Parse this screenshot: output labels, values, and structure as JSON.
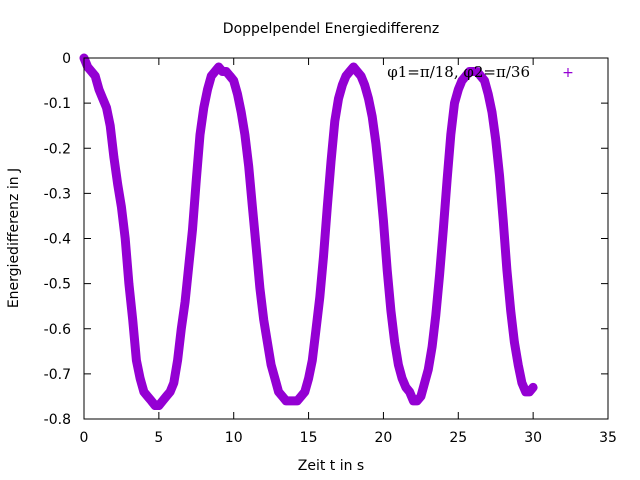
{
  "chart_data": {
    "type": "line",
    "title": "Doppelpendel Energiedifferenz",
    "xlabel": "Zeit t in s",
    "ylabel": "Energiedifferenz in J",
    "xlim": [
      0,
      35
    ],
    "ylim": [
      -0.8,
      0
    ],
    "x_ticks": [
      "0",
      "5",
      "10",
      "15",
      "20",
      "25",
      "30",
      "35"
    ],
    "y_ticks": [
      "0",
      "-0.1",
      "-0.2",
      "-0.3",
      "-0.4",
      "-0.5",
      "-0.6",
      "-0.7",
      "-0.8"
    ],
    "legend": {
      "label": "φ1=π/18, φ2=π/36",
      "marker": "+",
      "placement": "top-right"
    },
    "series": [
      {
        "name": "φ1=π/18, φ2=π/36",
        "color": "#9400d3",
        "x": [
          0,
          0.25,
          0.5,
          0.75,
          1.0,
          1.25,
          1.5,
          1.75,
          2.0,
          2.25,
          2.5,
          2.75,
          3.0,
          3.25,
          3.5,
          3.75,
          4.0,
          4.25,
          4.5,
          4.75,
          5.0,
          5.25,
          5.5,
          5.75,
          6.0,
          6.25,
          6.5,
          6.75,
          7.0,
          7.25,
          7.5,
          7.75,
          8.0,
          8.25,
          8.5,
          8.75,
          9.0,
          9.25,
          9.5,
          9.75,
          10.0,
          10.25,
          10.5,
          10.75,
          11.0,
          11.25,
          11.5,
          11.75,
          12.0,
          12.25,
          12.5,
          12.75,
          13.0,
          13.25,
          13.5,
          13.75,
          14.0,
          14.25,
          14.5,
          14.75,
          15.0,
          15.25,
          15.5,
          15.75,
          16.0,
          16.25,
          16.5,
          16.75,
          17.0,
          17.25,
          17.5,
          17.75,
          18.0,
          18.25,
          18.5,
          18.75,
          19.0,
          19.25,
          19.5,
          19.75,
          20.0,
          20.25,
          20.5,
          20.75,
          21.0,
          21.25,
          21.5,
          21.75,
          22.0,
          22.25,
          22.5,
          22.75,
          23.0,
          23.25,
          23.5,
          23.75,
          24.0,
          24.25,
          24.5,
          24.75,
          25.0,
          25.25,
          25.5,
          25.75,
          26.0,
          26.25,
          26.5,
          26.75,
          27.0,
          27.25,
          27.5,
          27.75,
          28.0,
          28.25,
          28.5,
          28.75,
          29.0,
          29.25,
          29.5,
          29.75,
          30.0
        ],
        "y": [
          0.0,
          -0.02,
          -0.03,
          -0.04,
          -0.07,
          -0.09,
          -0.11,
          -0.15,
          -0.22,
          -0.28,
          -0.33,
          -0.4,
          -0.5,
          -0.58,
          -0.67,
          -0.71,
          -0.74,
          -0.75,
          -0.76,
          -0.77,
          -0.77,
          -0.76,
          -0.75,
          -0.74,
          -0.72,
          -0.67,
          -0.6,
          -0.54,
          -0.46,
          -0.38,
          -0.27,
          -0.17,
          -0.11,
          -0.07,
          -0.04,
          -0.03,
          -0.02,
          -0.03,
          -0.03,
          -0.04,
          -0.05,
          -0.08,
          -0.12,
          -0.17,
          -0.24,
          -0.33,
          -0.42,
          -0.51,
          -0.58,
          -0.63,
          -0.68,
          -0.71,
          -0.74,
          -0.75,
          -0.76,
          -0.76,
          -0.76,
          -0.76,
          -0.75,
          -0.74,
          -0.71,
          -0.67,
          -0.6,
          -0.53,
          -0.44,
          -0.33,
          -0.23,
          -0.14,
          -0.09,
          -0.06,
          -0.04,
          -0.03,
          -0.02,
          -0.03,
          -0.04,
          -0.06,
          -0.09,
          -0.13,
          -0.19,
          -0.27,
          -0.36,
          -0.47,
          -0.56,
          -0.63,
          -0.68,
          -0.71,
          -0.73,
          -0.74,
          -0.76,
          -0.76,
          -0.75,
          -0.72,
          -0.69,
          -0.64,
          -0.57,
          -0.48,
          -0.38,
          -0.27,
          -0.17,
          -0.1,
          -0.07,
          -0.05,
          -0.04,
          -0.03,
          -0.03,
          -0.03,
          -0.04,
          -0.05,
          -0.08,
          -0.12,
          -0.18,
          -0.26,
          -0.36,
          -0.47,
          -0.56,
          -0.63,
          -0.68,
          -0.72,
          -0.74,
          -0.74,
          -0.73
        ]
      }
    ]
  }
}
